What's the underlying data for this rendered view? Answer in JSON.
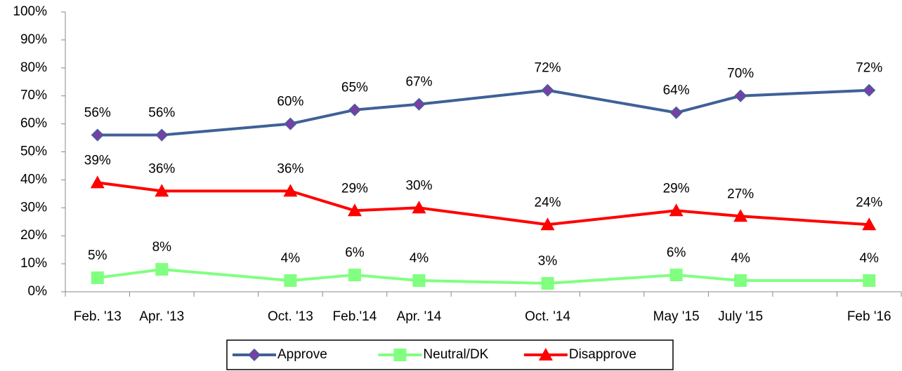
{
  "chart_data": {
    "type": "line",
    "categories": [
      "Feb. '13",
      "Apr. '13",
      null,
      "Oct. '13",
      "Feb.'14",
      "Apr. '14",
      null,
      "Oct. '14",
      null,
      "May '15",
      "July '15",
      null,
      "Feb '16"
    ],
    "ylim": [
      0,
      100
    ],
    "yticks": [
      {
        "value": 0,
        "label": "0%"
      },
      {
        "value": 10,
        "label": "10%"
      },
      {
        "value": 20,
        "label": "20%"
      },
      {
        "value": 30,
        "label": "30%"
      },
      {
        "value": 40,
        "label": "40%"
      },
      {
        "value": 50,
        "label": "50%"
      },
      {
        "value": 60,
        "label": "60%"
      },
      {
        "value": 70,
        "label": "70%"
      },
      {
        "value": 80,
        "label": "80%"
      },
      {
        "value": 90,
        "label": "90%"
      },
      {
        "value": 100,
        "label": "100%"
      }
    ],
    "legend": "bottom",
    "series": [
      {
        "name": "Approve",
        "color": "#3f6197",
        "marker": "diamond",
        "marker_color": "#7a3fa6",
        "values": [
          56,
          56,
          null,
          60,
          65,
          67,
          null,
          72,
          null,
          64,
          70,
          null,
          72
        ],
        "value_labels": [
          "56%",
          "56%",
          null,
          "60%",
          "65%",
          "67%",
          null,
          "72%",
          null,
          "64%",
          "70%",
          null,
          "72%"
        ]
      },
      {
        "name": "Neutral/DK",
        "color": "#80ff80",
        "marker": "square",
        "marker_color": "#80ff80",
        "values": [
          5,
          8,
          null,
          4,
          6,
          4,
          null,
          3,
          null,
          6,
          4,
          null,
          4
        ],
        "value_labels": [
          "5%",
          "8%",
          null,
          "4%",
          "6%",
          "4%",
          null,
          "3%",
          null,
          "6%",
          "4%",
          null,
          "4%"
        ]
      },
      {
        "name": "Disapprove",
        "color": "#ff0000",
        "marker": "triangle",
        "marker_color": "#ff0000",
        "values": [
          39,
          36,
          null,
          36,
          29,
          30,
          null,
          24,
          null,
          29,
          27,
          null,
          24
        ],
        "value_labels": [
          "39%",
          "36%",
          null,
          "36%",
          "29%",
          "30%",
          null,
          "24%",
          null,
          "29%",
          "27%",
          null,
          "24%"
        ]
      }
    ]
  }
}
